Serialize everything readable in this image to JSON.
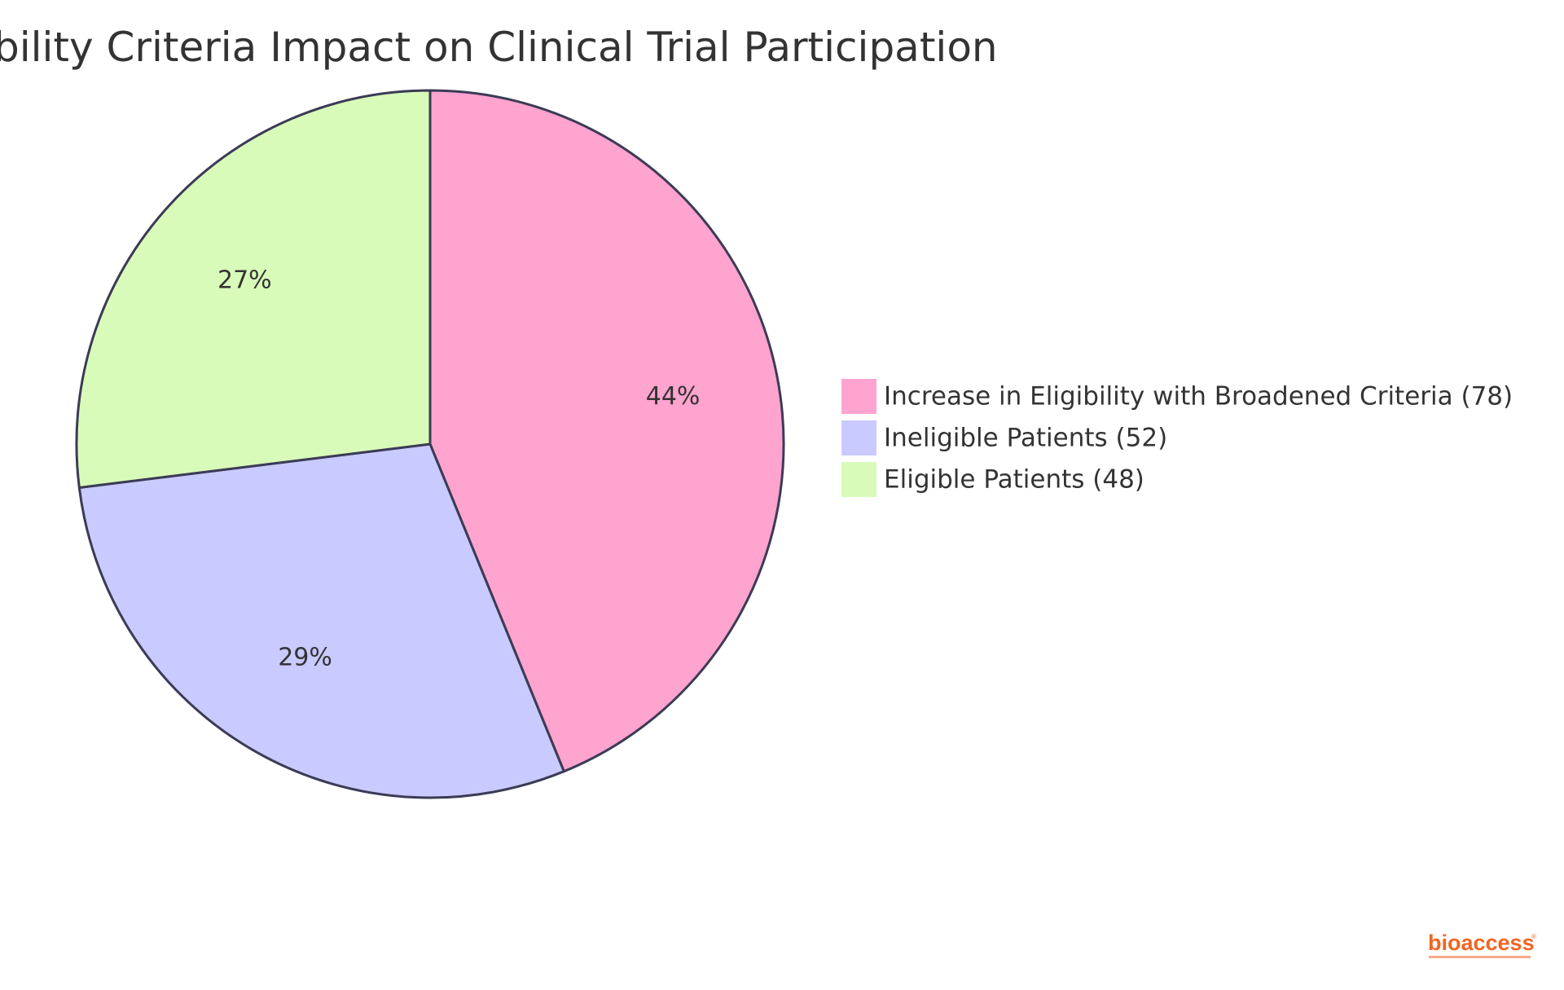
{
  "chart_data": {
    "type": "pie",
    "title": "bility Criteria Impact on Clinical Trial Participation",
    "slices": [
      {
        "name": "Increase in Eligibility with Broadened Criteria",
        "value": 78,
        "percent_label": "44%",
        "legend_label": "Increase in Eligibility with Broadened Criteria (78)",
        "color": "#ffa3cf"
      },
      {
        "name": "Ineligible Patients",
        "value": 52,
        "percent_label": "29%",
        "legend_label": "Ineligible Patients (52)",
        "color": "#c9caff"
      },
      {
        "name": "Eligible Patients",
        "value": 48,
        "percent_label": "27%",
        "legend_label": "Eligible Patients (48)",
        "color": "#d9fbb9"
      }
    ],
    "legend_position": "right",
    "stroke_color": "#3b3b55"
  },
  "branding": {
    "logo_text": "bioaccess",
    "logo_mark": "®",
    "logo_color": "#f26522",
    "logo_tagline_color": "#f26522"
  }
}
